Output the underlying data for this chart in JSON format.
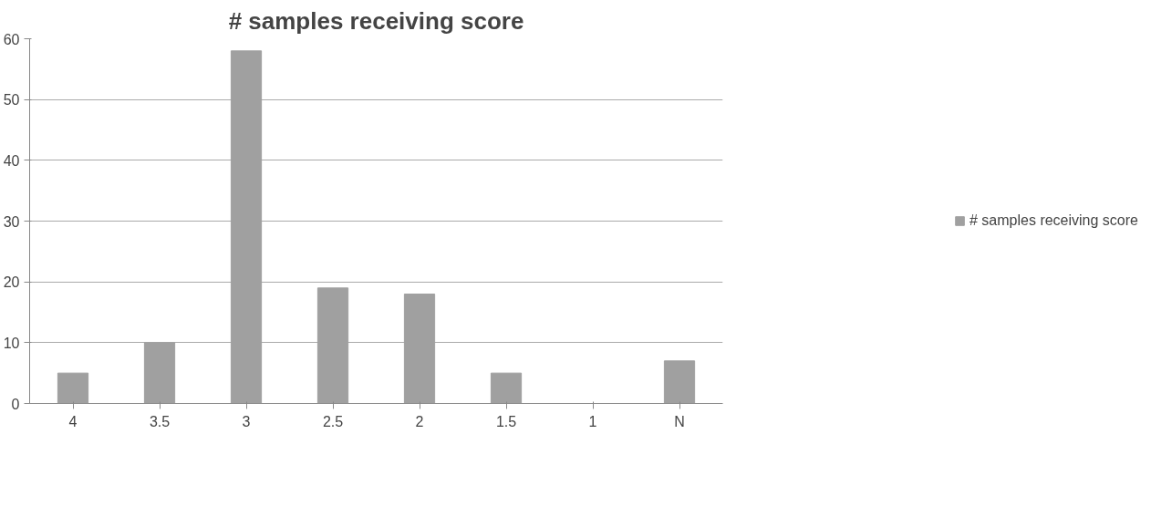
{
  "chart_data": {
    "type": "bar",
    "title": "# samples receiving score",
    "categories": [
      "4",
      "3.5",
      "3",
      "2.5",
      "2",
      "1.5",
      "1",
      "N"
    ],
    "series": [
      {
        "name": "# samples receiving score",
        "color": "#a0a0a0",
        "values": [
          5,
          10,
          58,
          19,
          18,
          5,
          0,
          7
        ]
      }
    ],
    "ylim": [
      0,
      60
    ],
    "yticks": [
      0,
      10,
      20,
      30,
      40,
      50,
      60
    ],
    "grid": "y",
    "legend": "right"
  }
}
